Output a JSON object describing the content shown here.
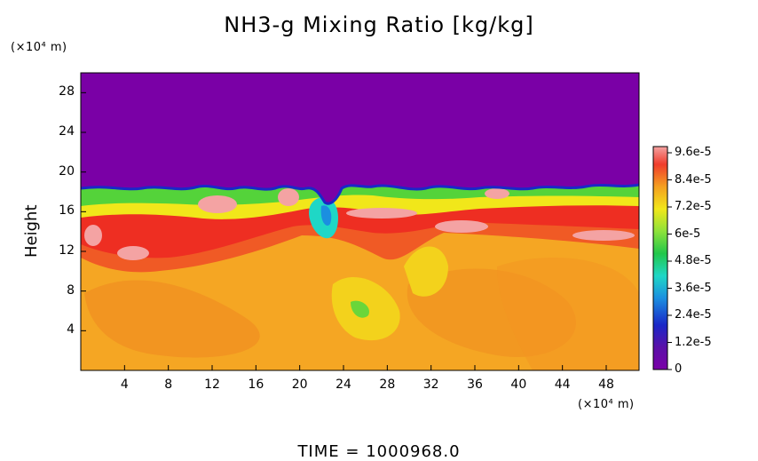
{
  "chart_data": {
    "type": "heatmap",
    "title": "NH3-g Mixing Ratio [kg/kg]",
    "ylabel": "Height",
    "y_unit": "(×10⁴ m)",
    "x_unit": "(×10⁴ m)",
    "x_ticks": [
      4,
      8,
      12,
      16,
      20,
      24,
      28,
      32,
      36,
      40,
      44,
      48
    ],
    "y_ticks": [
      4,
      8,
      12,
      16,
      20,
      24,
      28
    ],
    "xlim": [
      0,
      51
    ],
    "ylim": [
      0,
      30
    ],
    "colorbar": {
      "labels": [
        "9.6e-5",
        "8.4e-5",
        "7.2e-5",
        "6e-5",
        "4.8e-5",
        "3.6e-5",
        "2.4e-5",
        "1.2e-5",
        "0"
      ],
      "values": [
        9.6e-05,
        8.4e-05,
        7.2e-05,
        6e-05,
        4.8e-05,
        3.6e-05,
        2.4e-05,
        1.2e-05,
        0
      ],
      "colors": [
        "#f4a3a3",
        "#f03c2c",
        "#f5a020",
        "#f1e71a",
        "#8ee23a",
        "#22c74a",
        "#1fd7c6",
        "#1b8fe0",
        "#1a28c8",
        "#5a10a8",
        "#7b00a8"
      ]
    },
    "regions": {
      "upper_value": 0,
      "upper_color": "#7a00a6",
      "boundary_height": 18.5,
      "lower_color": "#f5a623"
    }
  },
  "footer": {
    "label": "TIME",
    "equals": "=",
    "value": "1000968.0"
  }
}
